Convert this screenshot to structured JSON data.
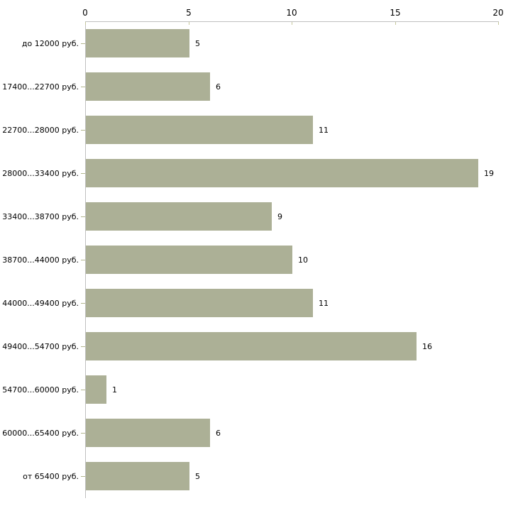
{
  "chart_data": {
    "type": "bar",
    "orientation": "horizontal",
    "title": "",
    "xlabel": "",
    "ylabel": "",
    "categories": [
      "до 12000 руб.",
      "17400...22700 руб.",
      "22700...28000 руб.",
      "28000...33400 руб.",
      "33400...38700 руб.",
      "38700...44000 руб.",
      "44000...49400 руб.",
      "49400...54700 руб.",
      "54700...60000 руб.",
      "60000...65400 руб.",
      "от 65400 руб."
    ],
    "values": [
      5,
      6,
      11,
      19,
      9,
      10,
      11,
      16,
      1,
      6,
      5
    ],
    "xlim": [
      0,
      20
    ],
    "x_ticks": [
      0,
      5,
      10,
      15,
      20
    ],
    "grid": false,
    "legend": "none",
    "value_labels_shown": true,
    "colors": {
      "bar_fill": "#acb096",
      "axis_line": "#c0c0c0",
      "x_tick_mark": "#c6c79b",
      "category_tick_mark": "#b3b78f",
      "text": "#000000",
      "background": "#ffffff"
    }
  }
}
